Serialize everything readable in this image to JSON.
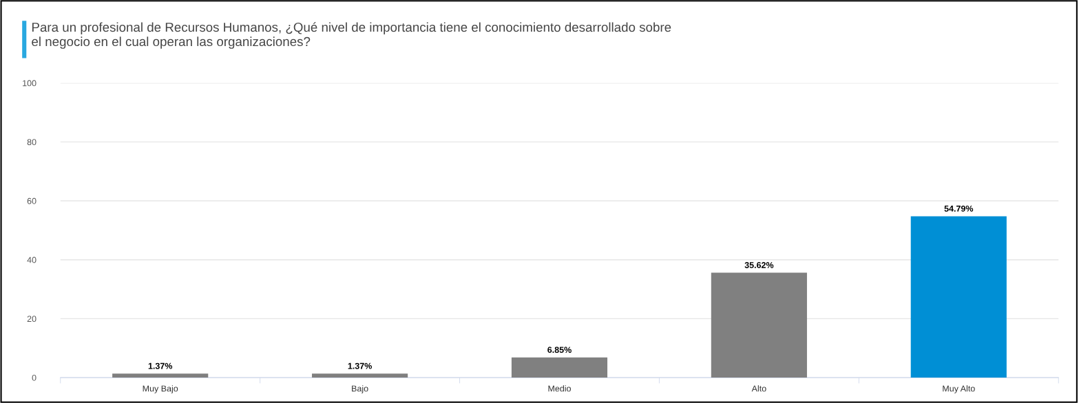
{
  "chart_data": {
    "type": "bar",
    "title": "Para un profesional de Recursos Humanos, ¿Qué nivel de importancia tiene el conocimiento desarrollado sobre\nel negocio en el cual operan las organizaciones?",
    "categories": [
      "Muy Bajo",
      "Bajo",
      "Medio",
      "Alto",
      "Muy Alto"
    ],
    "values": [
      1.37,
      1.37,
      6.85,
      35.62,
      54.79
    ],
    "colors": [
      "#808080",
      "#808080",
      "#808080",
      "#808080",
      "#008fd5"
    ],
    "value_labels": [
      "1.37%",
      "1.37%",
      "6.85%",
      "35.62%",
      "54.79%"
    ],
    "ylim": [
      0,
      100
    ],
    "yticks": [
      0,
      20,
      40,
      60,
      80,
      100
    ],
    "grid": "y",
    "legend": false
  }
}
